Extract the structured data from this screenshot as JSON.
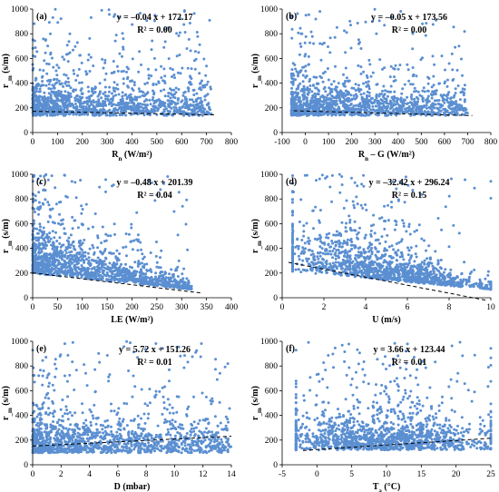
{
  "chart_data": [
    {
      "type": "scatter",
      "panel": "(a)",
      "xlabel_main": "R",
      "xlabel_sub": "n",
      "xlabel_unit": "(W/m²)",
      "ylabel_main": "r",
      "ylabel_sub": "_m",
      "ylabel_unit": "(s/m)",
      "xlim": [
        0,
        800
      ],
      "ylim": [
        0,
        1000
      ],
      "xticks": [
        "0",
        "100",
        "200",
        "300",
        "400",
        "500",
        "600",
        "700",
        "800"
      ],
      "yticks": [
        "0",
        "200",
        "400",
        "600",
        "800",
        "1000"
      ],
      "equation": "y = –0.04 x + 172.17",
      "r2": "R² = 0.00",
      "trendline": {
        "slope": -0.04,
        "intercept": 172.17,
        "x": [
          0,
          730
        ]
      },
      "cloud": {
        "x_range": [
          0,
          720
        ],
        "y_center": 200,
        "y_spread": 180,
        "shape": "flat",
        "density_bias": "low-x"
      }
    },
    {
      "type": "scatter",
      "panel": "(b)",
      "xlabel_main": "R",
      "xlabel_sub": "n",
      "xlabel_unit": "– G (W/m²)",
      "ylabel_main": "r",
      "ylabel_sub": "_m",
      "ylabel_unit": "(s/m)",
      "xlim": [
        -100,
        800
      ],
      "ylim": [
        0,
        1000
      ],
      "xticks": [
        "-100",
        "0",
        "100",
        "200",
        "300",
        "400",
        "500",
        "600",
        "700",
        "800"
      ],
      "yticks": [
        "0",
        "200",
        "400",
        "600",
        "800",
        "1000"
      ],
      "equation": "y = –0.05 x + 173.56",
      "r2": "R² = 0.00",
      "trendline": {
        "slope": -0.05,
        "intercept": 173.56,
        "x": [
          -50,
          720
        ]
      },
      "cloud": {
        "x_range": [
          -60,
          700
        ],
        "y_center": 200,
        "y_spread": 180,
        "shape": "flat",
        "density_bias": "low-x"
      }
    },
    {
      "type": "scatter",
      "panel": "(c)",
      "xlabel_main": "LE",
      "xlabel_sub": "",
      "xlabel_unit": "(W/m²)",
      "ylabel_main": "r",
      "ylabel_sub": "_m",
      "ylabel_unit": "(s/m)",
      "xlim": [
        0,
        400
      ],
      "ylim": [
        0,
        1000
      ],
      "xticks": [
        "0",
        "50",
        "100",
        "150",
        "200",
        "250",
        "300",
        "350",
        "400"
      ],
      "yticks": [
        "0",
        "200",
        "400",
        "600",
        "800",
        "1000"
      ],
      "equation": "y = –0.48 x + 201.39",
      "r2": "R² = 0.04",
      "trendline": {
        "slope": -0.48,
        "intercept": 201.39,
        "x": [
          0,
          340
        ]
      },
      "cloud": {
        "x_range": [
          0,
          320
        ],
        "y_center": 180,
        "y_spread": 200,
        "shape": "decay",
        "density_bias": "low-x"
      }
    },
    {
      "type": "scatter",
      "panel": "(d)",
      "xlabel_main": "U",
      "xlabel_sub": "",
      "xlabel_unit": "(m/s)",
      "ylabel_main": "r",
      "ylabel_sub": "_m",
      "ylabel_unit": "(s/m)",
      "xlim": [
        0,
        10
      ],
      "ylim": [
        0,
        1000
      ],
      "xticks": [
        "0",
        "2",
        "4",
        "6",
        "8",
        "10"
      ],
      "yticks": [
        "0",
        "200",
        "400",
        "600",
        "800",
        "1000"
      ],
      "equation": "y = –32.42 x + 296.24",
      "r2": "R² = 0.15",
      "trendline": {
        "slope": -32.42,
        "intercept": 296.24,
        "x": [
          0.3,
          9.8
        ]
      },
      "cloud": {
        "x_range": [
          0.5,
          10
        ],
        "y_center": 200,
        "y_spread": 220,
        "shape": "decay",
        "density_bias": "mid-x"
      }
    },
    {
      "type": "scatter",
      "panel": "(e)",
      "xlabel_main": "D",
      "xlabel_sub": "",
      "xlabel_unit": "(mbar)",
      "ylabel_main": "r",
      "ylabel_sub": "_m",
      "ylabel_unit": "(s/m)",
      "xlim": [
        0,
        14
      ],
      "ylim": [
        0,
        1000
      ],
      "xticks": [
        "0",
        "2",
        "4",
        "6",
        "8",
        "10",
        "12",
        "14"
      ],
      "yticks": [
        "0",
        "200",
        "400",
        "600",
        "800",
        "1000"
      ],
      "equation": "y = 5.72 x + 151.26",
      "r2": "R² = 0.01",
      "trendline": {
        "slope": 5.72,
        "intercept": 151.26,
        "x": [
          0,
          14
        ]
      },
      "cloud": {
        "x_range": [
          0,
          14
        ],
        "y_center": 160,
        "y_spread": 180,
        "shape": "flat",
        "density_bias": "low-x"
      }
    },
    {
      "type": "scatter",
      "panel": "(f)",
      "xlabel_main": "T",
      "xlabel_sub": "a",
      "xlabel_unit": "(°C)",
      "ylabel_main": "r",
      "ylabel_sub": "_m",
      "ylabel_unit": "(s/m)",
      "xlim": [
        -5,
        25
      ],
      "ylim": [
        0,
        1000
      ],
      "xticks": [
        "-5",
        "0",
        "5",
        "10",
        "15",
        "20",
        "25"
      ],
      "yticks": [
        "0",
        "200",
        "400",
        "600",
        "800",
        "1000"
      ],
      "equation": "y = 3.66 x + 123.44",
      "r2": "R² = 0.01",
      "trendline": {
        "slope": 3.66,
        "intercept": 123.44,
        "x": [
          -2,
          25
        ]
      },
      "cloud": {
        "x_range": [
          -3,
          25
        ],
        "y_center": 190,
        "y_spread": 200,
        "shape": "flat",
        "density_bias": "mid-x"
      }
    }
  ],
  "colors": {
    "marker": "#5b8fd1",
    "trendline": "#000000",
    "axis": "#000000"
  }
}
